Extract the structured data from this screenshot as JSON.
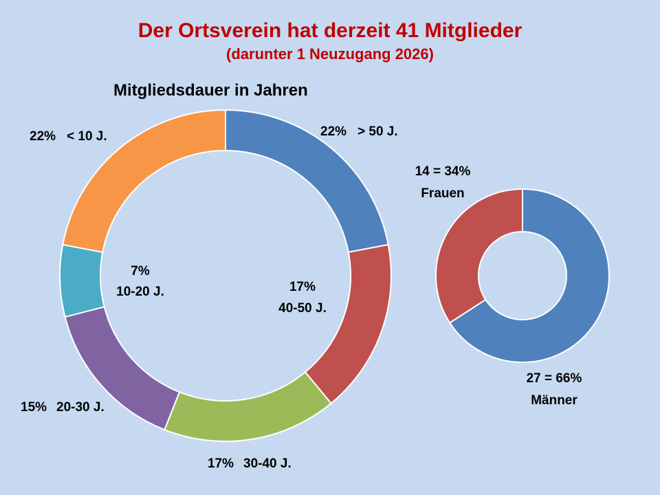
{
  "page": {
    "title": "Der Ortsverein hat derzeit 41 Mitglieder",
    "subtitle": "(darunter 1 Neuzugang 2026)"
  },
  "chart_data": [
    {
      "type": "pie",
      "variant": "donut",
      "title": "Mitgliedsdauer in Jahren",
      "slices": [
        {
          "category": "> 50 J.",
          "percent": 22,
          "label": "22%",
          "color": "#4f81bd"
        },
        {
          "category": "40-50 J.",
          "percent": 17,
          "label": "17%",
          "color": "#c0504d"
        },
        {
          "category": "30-40 J.",
          "percent": 17,
          "label": "17%",
          "color": "#9bbb59"
        },
        {
          "category": "20-30 J.",
          "percent": 15,
          "label": "15%",
          "color": "#8064a2"
        },
        {
          "category": "10-20 J.",
          "percent": 7,
          "label": "7%",
          "color": "#4bacc6"
        },
        {
          "category": "< 10 J.",
          "percent": 22,
          "label": "22%",
          "color": "#f79646"
        }
      ]
    },
    {
      "type": "pie",
      "variant": "donut",
      "title": "",
      "slices": [
        {
          "category": "Männer",
          "count": 27,
          "percent": 66,
          "label": "27 = 66%",
          "color": "#4f81bd"
        },
        {
          "category": "Frauen",
          "count": 14,
          "percent": 34,
          "label": "14 = 34%",
          "color": "#c0504d"
        }
      ]
    }
  ]
}
